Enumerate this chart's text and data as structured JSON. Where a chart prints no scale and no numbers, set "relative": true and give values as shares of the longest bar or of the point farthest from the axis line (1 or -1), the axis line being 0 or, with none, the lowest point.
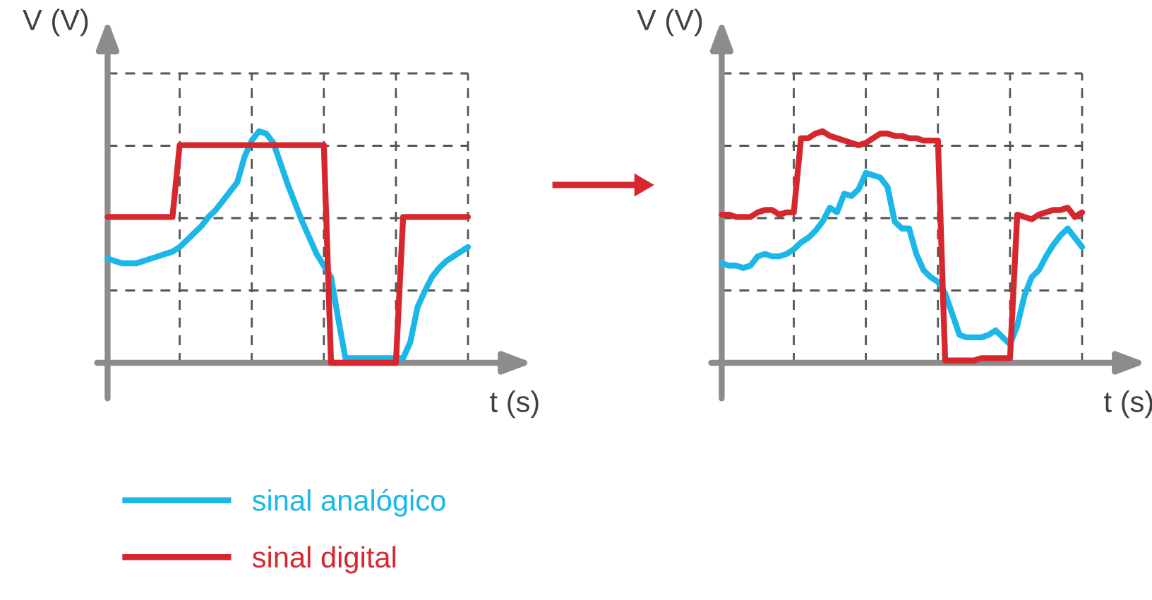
{
  "chart_data": [
    {
      "type": "line",
      "relative": true,
      "xlabel": "t (s)",
      "ylabel": "V (V)",
      "grid": true,
      "legend": "bottom left",
      "categories": [
        null,
        null,
        null,
        null,
        null,
        null,
        null,
        null,
        null,
        null,
        null,
        null,
        null,
        null,
        null,
        null,
        null,
        null,
        null,
        null,
        null,
        null,
        null,
        null,
        null,
        null,
        null,
        null,
        null,
        null,
        null,
        null,
        null,
        null,
        null,
        null,
        null,
        null,
        null,
        null,
        null,
        null,
        null,
        null,
        null,
        null,
        null,
        null,
        null,
        null,
        null
      ],
      "series": [
        {
          "name": "sinal analógico",
          "color": "#1ab7e8",
          "values": [
            0.45,
            0.44,
            0.43,
            0.43,
            0.43,
            0.44,
            0.45,
            0.46,
            0.47,
            0.48,
            0.5,
            0.53,
            0.56,
            0.59,
            0.63,
            0.66,
            0.7,
            0.74,
            0.78,
            0.89,
            0.96,
            1.0,
            0.99,
            0.95,
            0.86,
            0.77,
            0.69,
            0.61,
            0.54,
            0.47,
            0.42,
            0.37,
            0.19,
            0.02,
            0.02,
            0.02,
            0.02,
            0.02,
            0.02,
            0.02,
            0.02,
            0.02,
            0.09,
            0.24,
            0.31,
            0.37,
            0.41,
            0.44,
            0.46,
            0.48,
            0.5
          ]
        },
        {
          "name": "sinal digital",
          "color": "#d7272e",
          "values": [
            0.63,
            0.63,
            0.63,
            0.63,
            0.63,
            0.63,
            0.63,
            0.63,
            0.63,
            0.63,
            0.94,
            0.94,
            0.94,
            0.94,
            0.94,
            0.94,
            0.94,
            0.94,
            0.94,
            0.94,
            0.94,
            0.94,
            0.94,
            0.94,
            0.94,
            0.94,
            0.94,
            0.94,
            0.94,
            0.94,
            0.94,
            0,
            0,
            0,
            0,
            0,
            0,
            0,
            0,
            0,
            0,
            0.63,
            0.63,
            0.63,
            0.63,
            0.63,
            0.63,
            0.63,
            0.63,
            0.63,
            0.63
          ]
        }
      ]
    },
    {
      "type": "line",
      "relative": true,
      "xlabel": "t (s)",
      "ylabel": "V (V)",
      "grid": true,
      "categories": [
        null,
        null,
        null,
        null,
        null,
        null,
        null,
        null,
        null,
        null,
        null,
        null,
        null,
        null,
        null,
        null,
        null,
        null,
        null,
        null,
        null,
        null,
        null,
        null,
        null,
        null,
        null,
        null,
        null,
        null,
        null,
        null,
        null,
        null,
        null,
        null,
        null,
        null,
        null,
        null,
        null,
        null,
        null,
        null,
        null,
        null,
        null,
        null,
        null,
        null,
        null
      ],
      "series": [
        {
          "color": "#1ab7e8",
          "values": [
            0.43,
            0.42,
            0.42,
            0.41,
            0.42,
            0.46,
            0.47,
            0.46,
            0.46,
            0.47,
            0.49,
            0.52,
            0.54,
            0.57,
            0.61,
            0.67,
            0.65,
            0.73,
            0.72,
            0.75,
            0.82,
            0.81,
            0.8,
            0.76,
            0.61,
            0.58,
            0.58,
            0.47,
            0.4,
            0.37,
            0.35,
            0.3,
            0.21,
            0.12,
            0.11,
            0.11,
            0.11,
            0.12,
            0.14,
            0.11,
            0.08,
            0.16,
            0.29,
            0.37,
            0.4,
            0.46,
            0.51,
            0.55,
            0.58,
            0.54,
            0.5
          ]
        },
        {
          "color": "#d7272e",
          "values": [
            0.64,
            0.64,
            0.63,
            0.63,
            0.63,
            0.65,
            0.66,
            0.66,
            0.64,
            0.65,
            0.65,
            0.97,
            0.97,
            0.99,
            1.0,
            0.98,
            0.97,
            0.96,
            0.95,
            0.94,
            0.95,
            0.97,
            0.99,
            0.99,
            0.98,
            0.98,
            0.97,
            0.97,
            0.96,
            0.96,
            0.96,
            0.01,
            0.01,
            0.01,
            0.01,
            0.01,
            0.02,
            0.02,
            0.02,
            0.02,
            0.02,
            0.64,
            0.63,
            0.62,
            0.64,
            0.65,
            0.66,
            0.66,
            0.67,
            0.63,
            0.65
          ]
        }
      ]
    }
  ]
}
